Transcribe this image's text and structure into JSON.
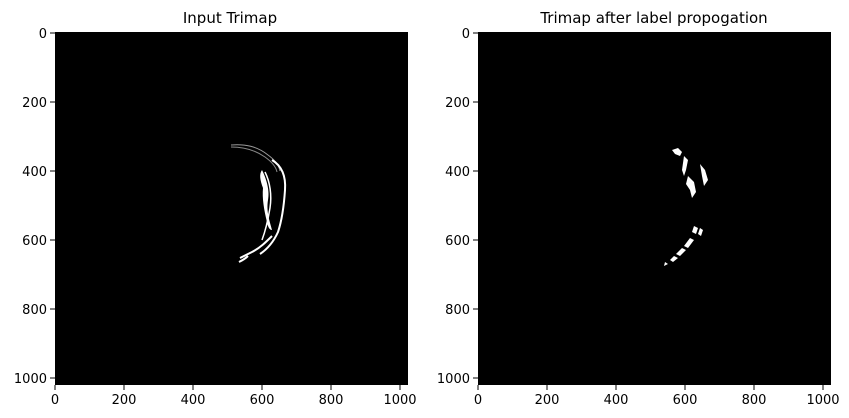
{
  "panels": [
    {
      "title": "Input Trimap",
      "x_ticks": [
        "0",
        "200",
        "400",
        "600",
        "800",
        "1000"
      ],
      "y_ticks": [
        "0",
        "200",
        "400",
        "600",
        "800",
        "1000"
      ]
    },
    {
      "title": "Trimap after label propogation",
      "x_ticks": [
        "0",
        "200",
        "400",
        "600",
        "800",
        "1000"
      ],
      "y_ticks": [
        "0",
        "200",
        "400",
        "600",
        "800",
        "1000"
      ]
    }
  ],
  "colors": {
    "image_background": "#000000",
    "foreground": "#ffffff",
    "unknown": "#808080"
  }
}
